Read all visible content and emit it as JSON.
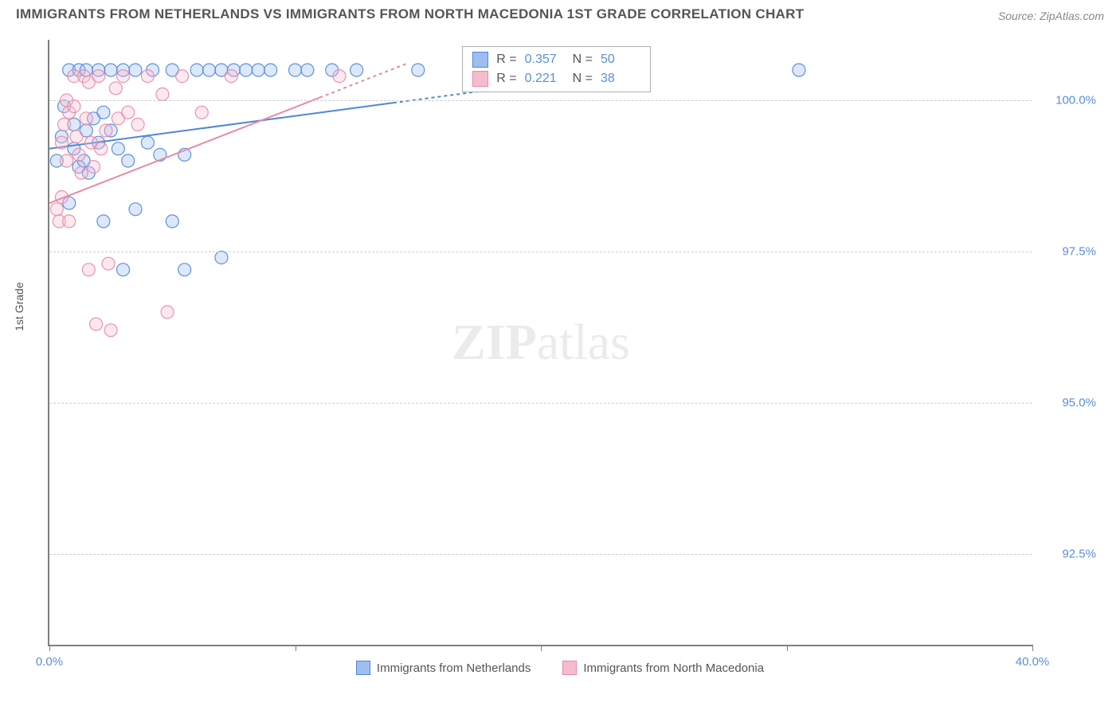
{
  "title": "IMMIGRANTS FROM NETHERLANDS VS IMMIGRANTS FROM NORTH MACEDONIA 1ST GRADE CORRELATION CHART",
  "source": "Source: ZipAtlas.com",
  "y_axis_label": "1st Grade",
  "watermark_bold": "ZIP",
  "watermark_rest": "atlas",
  "chart": {
    "type": "scatter",
    "xlim": [
      0,
      40
    ],
    "ylim": [
      91,
      101
    ],
    "x_ticks": [
      0,
      10,
      20,
      30,
      40
    ],
    "x_tick_labels_shown": {
      "0": "0.0%",
      "40": "40.0%"
    },
    "y_ticks": [
      92.5,
      95.0,
      97.5,
      100.0
    ],
    "y_tick_labels": [
      "92.5%",
      "95.0%",
      "97.5%",
      "100.0%"
    ],
    "grid_color": "#cccccc",
    "axis_color": "#808080",
    "background_color": "#ffffff",
    "tick_label_color": "#5b8fd6",
    "marker_radius": 8,
    "marker_fill_opacity": 0.35,
    "marker_stroke_opacity": 0.9,
    "marker_stroke_width": 1.2,
    "series": [
      {
        "name": "Immigrants from Netherlands",
        "color_stroke": "#4f86d9",
        "color_fill": "#9fbef0",
        "trend": {
          "x1": 0,
          "y1": 99.2,
          "x2": 24,
          "y2": 100.5,
          "dashed_from_x": 14,
          "stroke_width": 2
        },
        "points": [
          [
            0.3,
            99.0
          ],
          [
            0.5,
            99.4
          ],
          [
            0.6,
            99.9
          ],
          [
            0.8,
            98.3
          ],
          [
            0.8,
            100.5
          ],
          [
            1.0,
            99.6
          ],
          [
            1.0,
            99.2
          ],
          [
            1.2,
            100.5
          ],
          [
            1.2,
            98.9
          ],
          [
            1.4,
            99.0
          ],
          [
            1.5,
            100.5
          ],
          [
            1.5,
            99.5
          ],
          [
            1.6,
            98.8
          ],
          [
            1.8,
            99.7
          ],
          [
            2.0,
            100.5
          ],
          [
            2.0,
            99.3
          ],
          [
            2.2,
            99.8
          ],
          [
            2.2,
            98.0
          ],
          [
            2.5,
            99.5
          ],
          [
            2.5,
            100.5
          ],
          [
            2.8,
            99.2
          ],
          [
            3.0,
            100.5
          ],
          [
            3.0,
            97.2
          ],
          [
            3.2,
            99.0
          ],
          [
            3.5,
            98.2
          ],
          [
            3.5,
            100.5
          ],
          [
            4.0,
            99.3
          ],
          [
            4.2,
            100.5
          ],
          [
            4.5,
            99.1
          ],
          [
            5.0,
            100.5
          ],
          [
            5.0,
            98.0
          ],
          [
            5.5,
            99.1
          ],
          [
            5.5,
            97.2
          ],
          [
            6.0,
            100.5
          ],
          [
            6.5,
            100.5
          ],
          [
            7.0,
            100.5
          ],
          [
            7.0,
            97.4
          ],
          [
            7.5,
            100.5
          ],
          [
            8.0,
            100.5
          ],
          [
            8.5,
            100.5
          ],
          [
            9.0,
            100.5
          ],
          [
            10.0,
            100.5
          ],
          [
            10.5,
            100.5
          ],
          [
            11.5,
            100.5
          ],
          [
            12.5,
            100.5
          ],
          [
            15.0,
            100.5
          ],
          [
            18.0,
            100.5
          ],
          [
            22.0,
            100.5
          ],
          [
            23.5,
            100.5
          ],
          [
            30.5,
            100.5
          ]
        ]
      },
      {
        "name": "Immigrants from North Macedonia",
        "color_stroke": "#e68aa6",
        "color_fill": "#f5bccf",
        "trend": {
          "x1": 0,
          "y1": 98.3,
          "x2": 14.5,
          "y2": 100.6,
          "dashed_from_x": 11,
          "stroke_width": 2
        },
        "points": [
          [
            0.3,
            98.2
          ],
          [
            0.4,
            98.0
          ],
          [
            0.5,
            99.3
          ],
          [
            0.5,
            98.4
          ],
          [
            0.6,
            99.6
          ],
          [
            0.7,
            99.0
          ],
          [
            0.7,
            100.0
          ],
          [
            0.8,
            99.8
          ],
          [
            0.8,
            98.0
          ],
          [
            1.0,
            99.9
          ],
          [
            1.0,
            100.4
          ],
          [
            1.1,
            99.4
          ],
          [
            1.2,
            99.1
          ],
          [
            1.3,
            98.8
          ],
          [
            1.4,
            100.4
          ],
          [
            1.5,
            99.7
          ],
          [
            1.6,
            97.2
          ],
          [
            1.6,
            100.3
          ],
          [
            1.7,
            99.3
          ],
          [
            1.8,
            98.9
          ],
          [
            1.9,
            96.3
          ],
          [
            2.0,
            100.4
          ],
          [
            2.1,
            99.2
          ],
          [
            2.3,
            99.5
          ],
          [
            2.4,
            97.3
          ],
          [
            2.5,
            96.2
          ],
          [
            2.7,
            100.2
          ],
          [
            2.8,
            99.7
          ],
          [
            3.0,
            100.4
          ],
          [
            3.2,
            99.8
          ],
          [
            3.6,
            99.6
          ],
          [
            4.0,
            100.4
          ],
          [
            4.6,
            100.1
          ],
          [
            4.8,
            96.5
          ],
          [
            5.4,
            100.4
          ],
          [
            6.2,
            99.8
          ],
          [
            7.4,
            100.4
          ],
          [
            11.8,
            100.4
          ]
        ]
      }
    ],
    "legend": {
      "items": [
        "Immigrants from Netherlands",
        "Immigrants from North Macedonia"
      ]
    },
    "stat_box": {
      "left_pct": 42,
      "top_pct": 1,
      "rows": [
        {
          "series": 0,
          "r_label": "R =",
          "r": "0.357",
          "n_label": "N =",
          "n": "50"
        },
        {
          "series": 1,
          "r_label": "R =",
          "r": "0.221",
          "n_label": "N =",
          "n": "38"
        }
      ]
    }
  }
}
